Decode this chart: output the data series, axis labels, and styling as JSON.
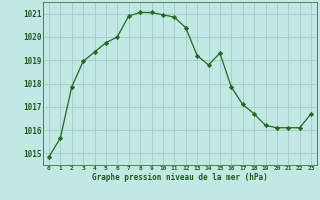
{
  "x": [
    0,
    1,
    2,
    3,
    4,
    5,
    6,
    7,
    8,
    9,
    10,
    11,
    12,
    13,
    14,
    15,
    16,
    17,
    18,
    19,
    20,
    21,
    22,
    23
  ],
  "y": [
    1014.85,
    1015.65,
    1017.85,
    1018.95,
    1019.35,
    1019.75,
    1020.0,
    1020.9,
    1021.05,
    1021.05,
    1020.95,
    1020.85,
    1020.4,
    1019.2,
    1018.8,
    1019.3,
    1017.85,
    1017.1,
    1016.7,
    1016.2,
    1016.1,
    1016.1,
    1016.1,
    1016.7
  ],
  "line_color": "#1a6e1a",
  "marker": "D",
  "marker_size": 2.2,
  "bg_color": "#c2e8e4",
  "grid_color": "#aacfcb",
  "xlabel": "Graphe pression niveau de la mer (hPa)",
  "xlabel_color": "#1a5e1a",
  "tick_color": "#1a5e1a",
  "ylim": [
    1014.5,
    1021.5
  ],
  "xlim": [
    -0.5,
    23.5
  ],
  "yticks": [
    1015,
    1016,
    1017,
    1018,
    1019,
    1020,
    1021
  ],
  "xticks": [
    0,
    1,
    2,
    3,
    4,
    5,
    6,
    7,
    8,
    9,
    10,
    11,
    12,
    13,
    14,
    15,
    16,
    17,
    18,
    19,
    20,
    21,
    22,
    23
  ]
}
